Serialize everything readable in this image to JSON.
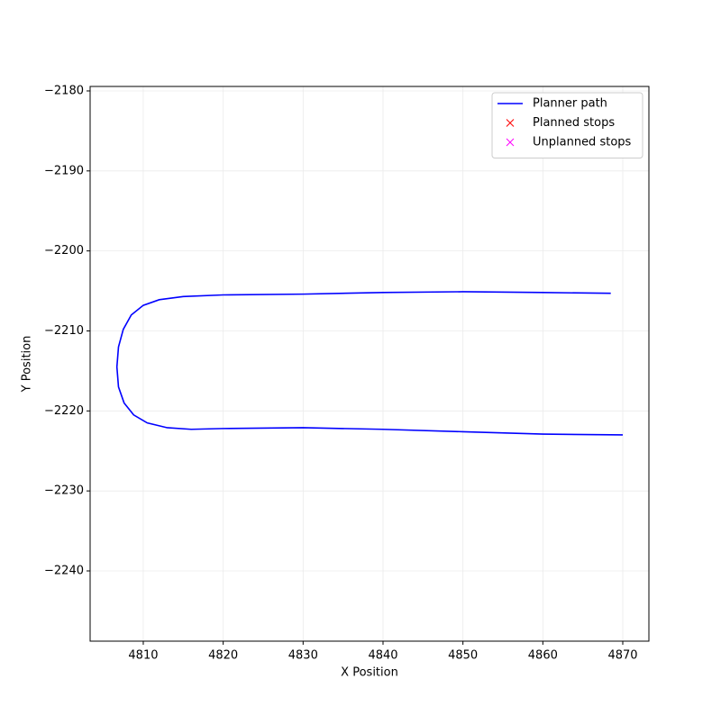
{
  "chart_data": {
    "type": "line",
    "xlabel": "X Position",
    "ylabel": "Y Position",
    "xlim": [
      4803.35,
      4873.27
    ],
    "ylim": [
      -2248.78,
      -2179.44
    ],
    "xticks": [
      4810,
      4820,
      4830,
      4840,
      4850,
      4860,
      4870
    ],
    "yticks": [
      {
        "value": -2180,
        "label": "−2180"
      },
      {
        "value": -2190,
        "label": "−2190"
      },
      {
        "value": -2200,
        "label": "−2200"
      },
      {
        "value": -2210,
        "label": "−2210"
      },
      {
        "value": -2220,
        "label": "−2220"
      },
      {
        "value": -2230,
        "label": "−2230"
      },
      {
        "value": -2240,
        "label": "−2240"
      }
    ],
    "grid": true,
    "legend": "upper right",
    "series": [
      {
        "name": "Planner path",
        "color": "#0000ff",
        "type": "line",
        "x": [
          4868.5,
          4860,
          4850,
          4840,
          4830,
          4820,
          4815,
          4812,
          4810,
          4808.5,
          4807.5,
          4806.9,
          4806.7,
          4806.9,
          4807.6,
          4808.8,
          4810.5,
          4813,
          4816,
          4820,
          4830,
          4840,
          4850,
          4860,
          4870
        ],
        "values": [
          -2205.3,
          -2205.2,
          -2205.1,
          -2205.2,
          -2205.4,
          -2205.5,
          -2205.7,
          -2206.1,
          -2206.8,
          -2208,
          -2209.8,
          -2212,
          -2214.5,
          -2217,
          -2219,
          -2220.5,
          -2221.5,
          -2222.1,
          -2222.3,
          -2222.2,
          -2222.1,
          -2222.3,
          -2222.6,
          -2222.9,
          -2223
        ]
      },
      {
        "name": "Planned stops",
        "color": "#ff0000",
        "type": "scatter",
        "x": [],
        "values": []
      },
      {
        "name": "Unplanned stops",
        "color": "#ff00ff",
        "type": "scatter",
        "x": [],
        "values": []
      }
    ]
  }
}
